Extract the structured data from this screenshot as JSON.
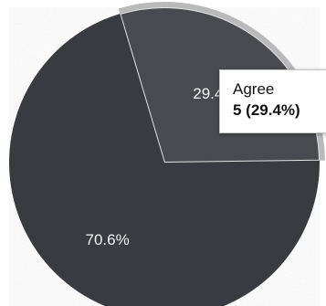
{
  "chart_data": {
    "type": "pie",
    "slices": [
      {
        "label": "Agree",
        "count": 5,
        "percent": 29.4,
        "value_label": "29.4%",
        "color": "#4a4c51"
      },
      {
        "label": "",
        "count": 12,
        "percent": 70.6,
        "value_label": "70.6%",
        "color": "#3a3c41"
      }
    ],
    "tooltip": {
      "label": "Agree",
      "value": "5 (29.4%)"
    },
    "legend": "none"
  }
}
